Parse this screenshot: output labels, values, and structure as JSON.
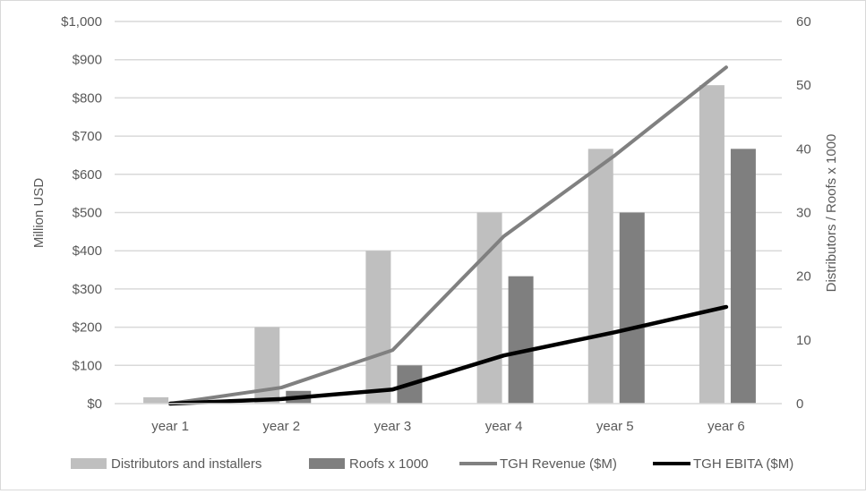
{
  "chart_data": {
    "type": "bar",
    "categories": [
      "year 1",
      "year 2",
      "year 3",
      "year 4",
      "year 5",
      "year 6"
    ],
    "ylabel": "Million USD",
    "y2label": "Distributors / Roofs x 1000",
    "ylim": [
      0,
      1000
    ],
    "y2lim": [
      0,
      60
    ],
    "yticks": [
      "$0",
      "$100",
      "$200",
      "$300",
      "$400",
      "$500",
      "$600",
      "$700",
      "$800",
      "$900",
      "$1,000"
    ],
    "y2ticks": [
      "0",
      "10",
      "20",
      "30",
      "40",
      "50",
      "60"
    ],
    "grid": true,
    "legend_position": "bottom",
    "series": [
      {
        "name": "Distributors and installers",
        "type": "bar",
        "axis": "right",
        "color": "#bfbfbf",
        "values": [
          1,
          12,
          24,
          30,
          40,
          50
        ]
      },
      {
        "name": "Roofs x 1000",
        "type": "bar",
        "axis": "right",
        "color": "#7f7f7f",
        "values": [
          0,
          2,
          6,
          20,
          30,
          40
        ]
      },
      {
        "name": "TGH Revenue ($M)",
        "type": "line",
        "axis": "left",
        "color": "#808080",
        "values": [
          0,
          42,
          140,
          438,
          650,
          880
        ]
      },
      {
        "name": "TGH EBITA ($M)",
        "type": "line",
        "axis": "left",
        "color": "#000000",
        "values": [
          0,
          12,
          37,
          126,
          187,
          253
        ]
      }
    ]
  }
}
